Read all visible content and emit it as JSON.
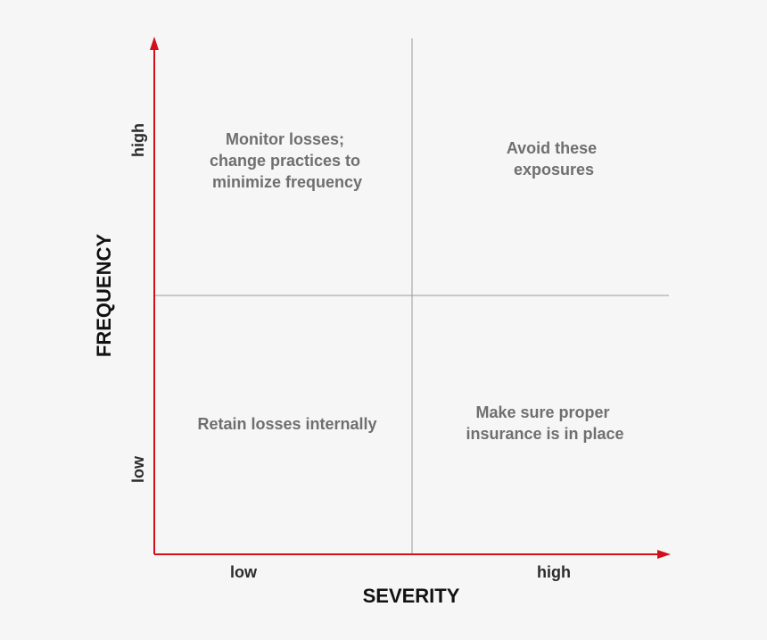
{
  "colors": {
    "background": "#f6f6f6",
    "axis": "#d40f1c",
    "divider": "#9a9a9a",
    "quadrant_text": "#6f6f6f",
    "tick_text": "#2b2b2b",
    "axis_title": "#111111"
  },
  "axes": {
    "x_title": "SEVERITY",
    "y_title": "FREQUENCY",
    "x_low": "low",
    "x_high": "high",
    "y_low": "low",
    "y_high": "high"
  },
  "quadrants": {
    "top_left": [
      "Monitor losses;",
      "change practices to",
      "minimize frequency"
    ],
    "top_right": [
      "Avoid these",
      "exposures"
    ],
    "bottom_left": [
      "Retain losses internally"
    ],
    "bottom_right": [
      "Make sure proper",
      "insurance is in place"
    ]
  }
}
